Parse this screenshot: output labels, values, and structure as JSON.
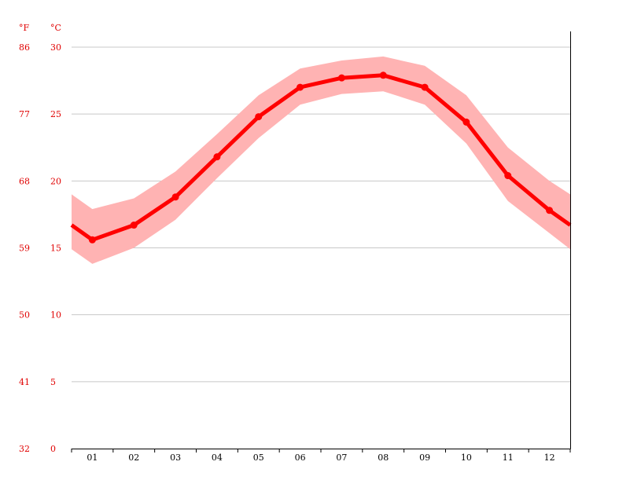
{
  "chart_data": {
    "type": "line",
    "title": "",
    "xlabel": "",
    "ylabel": "",
    "unit_f": "°F",
    "unit_c": "°C",
    "categories": [
      "01",
      "02",
      "03",
      "04",
      "05",
      "06",
      "07",
      "08",
      "09",
      "10",
      "11",
      "12"
    ],
    "series": [
      {
        "values": [
          15.6,
          16.7,
          18.8,
          21.8,
          24.8,
          27.0,
          27.7,
          27.9,
          27.0,
          24.4,
          20.4,
          17.8
        ],
        "band_low": [
          13.8,
          15.0,
          17.1,
          20.2,
          23.2,
          25.7,
          26.5,
          26.7,
          25.7,
          22.8,
          18.5,
          16.1
        ],
        "band_high": [
          17.9,
          18.7,
          20.7,
          23.5,
          26.4,
          28.4,
          29.0,
          29.3,
          28.6,
          26.4,
          22.5,
          20.0
        ],
        "wrap_start": 16.7,
        "wrap_start_low": 14.9,
        "wrap_start_high": 19.0,
        "wrap_end": 16.7,
        "wrap_end_low": 14.9,
        "wrap_end_high": 19.0,
        "color": "#ff0000",
        "band_color": "#ffb3b3"
      }
    ],
    "yticks_c": [
      "0",
      "5",
      "10",
      "15",
      "20",
      "25",
      "30"
    ],
    "yticks_f": [
      "32",
      "41",
      "50",
      "59",
      "68",
      "77",
      "86"
    ],
    "ylim": [
      0,
      30
    ],
    "grid": true,
    "colors": {
      "axis_text": "#e00000",
      "grid": "#c8c8c8"
    }
  }
}
